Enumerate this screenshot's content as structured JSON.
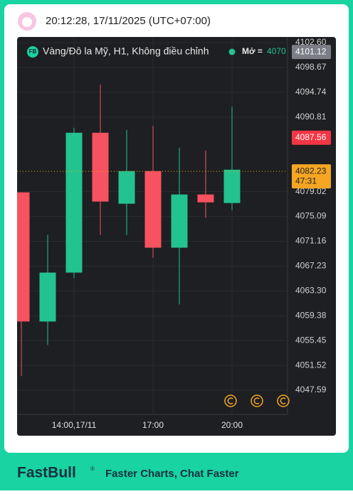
{
  "header": {
    "time": "20:12:28, 17/11/2025 (UTC+07:00)"
  },
  "chart_data": {
    "type": "candlestick",
    "legend": {
      "symbol": "FB",
      "title": "Vàng/Đô la Mỹ, H1, Không điều chỉnh",
      "open_label": "Mở =",
      "open_value": "4070"
    },
    "categories": [
      null,
      null,
      "14:00,17/11",
      null,
      null,
      "17:00",
      null,
      null,
      "20:00",
      null,
      null
    ],
    "open": [
      4078.91,
      4058.47,
      4066.21,
      4088.34,
      4077.11,
      4082.27,
      4070.15,
      4078.57,
      4077.22,
      null,
      null
    ],
    "high": [
      4078.91,
      4072.17,
      4089.13,
      4095.97,
      4088.79,
      4089.46,
      4085.98,
      4085.53,
      4092.49,
      null,
      null
    ],
    "low": [
      4049.82,
      4054.76,
      4065.32,
      4072.17,
      4072.17,
      4068.57,
      4061.16,
      4074.86,
      4076.1,
      null,
      null
    ],
    "close": [
      4058.47,
      4066.21,
      4088.34,
      4077.45,
      4082.27,
      4070.15,
      4078.57,
      4077.33,
      4082.5,
      null,
      null
    ],
    "up_color": "#22c38e",
    "down_color": "#f7525f",
    "ylim": [
      4043.77,
      4103.5
    ],
    "yticks": [
      {
        "value": 4102.6,
        "label": "4102.60"
      },
      4098.67,
      4094.74,
      4090.81,
      4079.02,
      4075.09,
      4071.16,
      4067.23,
      {
        "value": 4063.3,
        "label": "4063.30"
      },
      4059.38,
      4055.45,
      4051.52,
      4047.59
    ],
    "grid": true,
    "price_labels": [
      {
        "value": 4101.12,
        "color": "#7b7e86"
      },
      {
        "value": 4087.56,
        "color": "#f23645"
      },
      {
        "value": 4082.23,
        "color": "#f5a623",
        "countdown": "47:31"
      }
    ]
  },
  "footer": {
    "brand": "FastBull",
    "mark": "®",
    "tagline": "Faster Charts, Chat Faster"
  }
}
